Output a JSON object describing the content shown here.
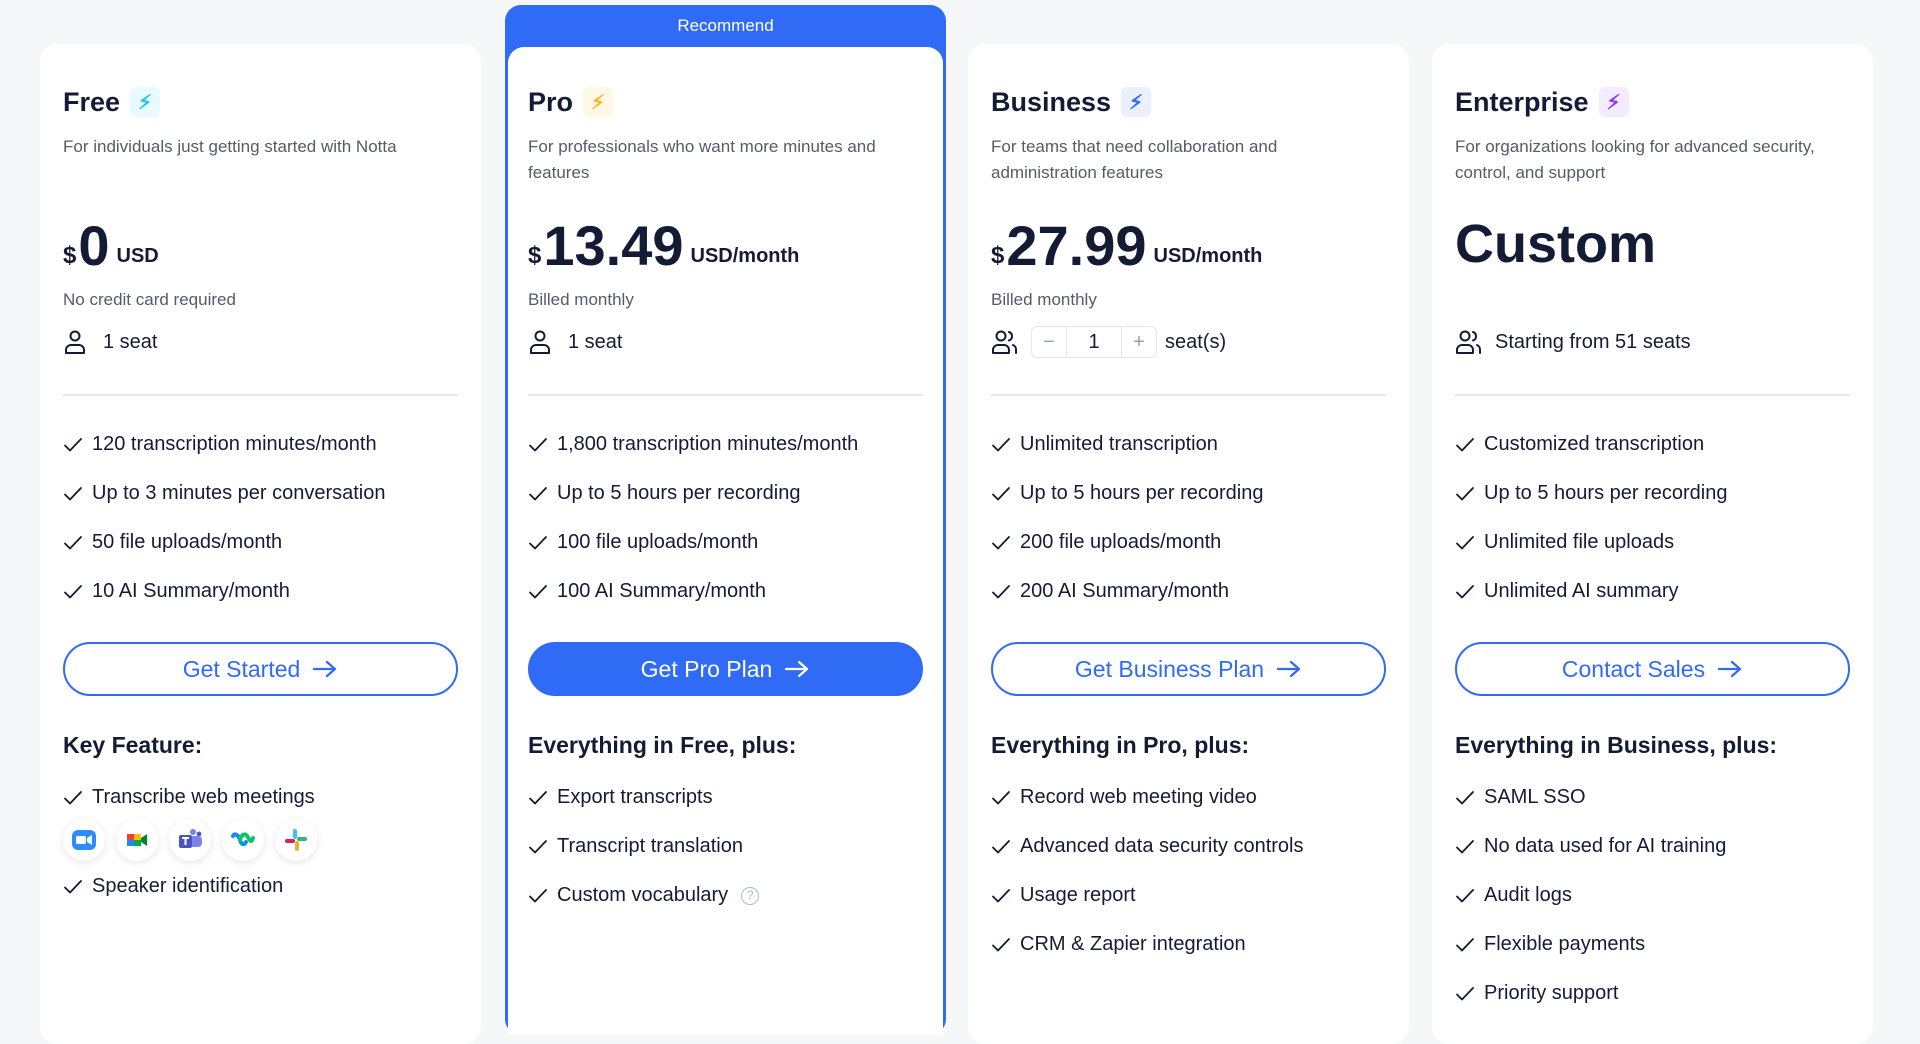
{
  "accent": "#2f6bf5",
  "recommend_label": "Recommend",
  "plans": [
    {
      "name": "Free",
      "bolt_color": "#22c3e6",
      "description": "For individuals just getting started with Notta",
      "currency": "$",
      "amount": "0",
      "unit": "USD",
      "note": "No credit card required",
      "seat": "1 seat",
      "features": [
        "120 transcription minutes/month",
        "Up to 3 minutes per conversation",
        "50 file uploads/month",
        "10 AI Summary/month"
      ],
      "button": "Get Started",
      "section_title": "Key Feature:",
      "extras": [
        "Transcribe web meetings",
        "Speaker identification"
      ],
      "meeting_apps": [
        "zoom-icon",
        "google-meet-icon",
        "microsoft-teams-icon",
        "webex-icon",
        "slack-icon"
      ]
    },
    {
      "name": "Pro",
      "bolt_color": "#f7b928",
      "description": "For professionals who want more minutes and features",
      "currency": "$",
      "amount": "13.49",
      "unit": "USD/month",
      "note": "Billed monthly",
      "seat": "1 seat",
      "features": [
        "1,800 transcription minutes/month",
        "Up to 5 hours per recording",
        "100 file uploads/month",
        "100 AI Summary/month"
      ],
      "button": "Get Pro Plan",
      "section_title": "Everything in Free, plus:",
      "extras": [
        "Export transcripts",
        "Transcript translation",
        "Custom vocabulary"
      ]
    },
    {
      "name": "Business",
      "bolt_color": "#2f6bf5",
      "description": "For teams that need collaboration and administration features",
      "currency": "$",
      "amount": "27.99",
      "unit": "USD/month",
      "note": "Billed monthly",
      "seat_stepper": {
        "minus": "−",
        "value": "1",
        "plus": "+",
        "suffix": "seat(s)"
      },
      "features": [
        "Unlimited transcription",
        "Up to 5 hours per recording",
        "200 file uploads/month",
        "200 AI Summary/month"
      ],
      "button": "Get Business Plan",
      "section_title": "Everything in Pro, plus:",
      "extras": [
        "Record web meeting video",
        "Advanced data security controls",
        "Usage report",
        "CRM & Zapier integration"
      ]
    },
    {
      "name": "Enterprise",
      "bolt_color": "#8b3cf0",
      "description": "For organizations looking for advanced security, control, and support",
      "price_text": "Custom",
      "seat": "Starting from 51 seats",
      "features": [
        "Customized transcription",
        "Up to 5 hours per recording",
        "Unlimited file uploads",
        "Unlimited AI summary"
      ],
      "button": "Contact Sales",
      "section_title": "Everything in Business, plus:",
      "extras": [
        "SAML SSO",
        "No data used for AI training",
        "Audit logs",
        "Flexible payments",
        "Priority support"
      ]
    }
  ]
}
